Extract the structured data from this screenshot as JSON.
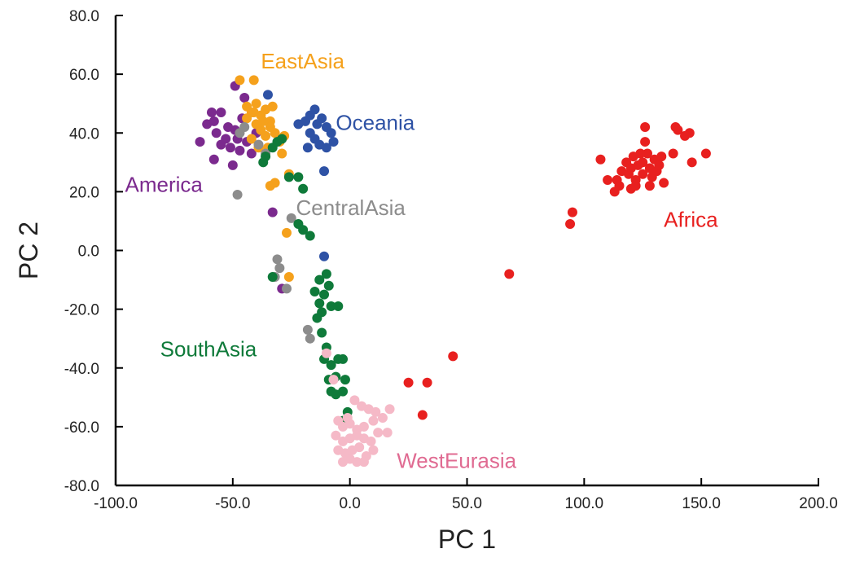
{
  "chart_data": {
    "type": "scatter",
    "title": "",
    "xlabel": "PC 1",
    "ylabel": "PC 2",
    "xlim": [
      -100,
      200
    ],
    "ylim": [
      -80,
      80
    ],
    "xticks": [
      -100,
      -50,
      0,
      50,
      100,
      150,
      200
    ],
    "xtick_labels": [
      "-100.0",
      "-50.0",
      "0.0",
      "50.0",
      "100.0",
      "150.0",
      "200.0"
    ],
    "yticks": [
      -80,
      -60,
      -40,
      -20,
      0,
      20,
      40,
      60,
      80
    ],
    "ytick_labels": [
      "-80.0",
      "-60.0",
      "-40.0",
      "-20.0",
      "0.0",
      "20.0",
      "40.0",
      "60.0",
      "80.0"
    ],
    "grid": false,
    "series": [
      {
        "name": "America",
        "color": "#7b2a8e",
        "points": [
          [
            -64,
            37
          ],
          [
            -61,
            43
          ],
          [
            -59,
            47
          ],
          [
            -58,
            44
          ],
          [
            -57,
            40
          ],
          [
            -55,
            47
          ],
          [
            -53,
            38
          ],
          [
            -52,
            42
          ],
          [
            -51,
            35
          ],
          [
            -50,
            29
          ],
          [
            -49,
            56
          ],
          [
            -49,
            41
          ],
          [
            -48,
            38
          ],
          [
            -47,
            34
          ],
          [
            -46,
            45
          ],
          [
            -44,
            37
          ],
          [
            -42,
            33
          ],
          [
            -40,
            40
          ],
          [
            -45,
            52
          ],
          [
            -58,
            31
          ],
          [
            -55,
            36
          ],
          [
            -33,
            13
          ],
          [
            -29,
            -13
          ]
        ]
      },
      {
        "name": "EastAsia",
        "color": "#f5a11c",
        "points": [
          [
            -47,
            58
          ],
          [
            -41,
            58
          ],
          [
            -44,
            49
          ],
          [
            -42,
            47
          ],
          [
            -40,
            50
          ],
          [
            -38,
            46
          ],
          [
            -36,
            48
          ],
          [
            -34,
            44
          ],
          [
            -33,
            49
          ],
          [
            -44,
            45
          ],
          [
            -40,
            43
          ],
          [
            -38,
            41
          ],
          [
            -36,
            39
          ],
          [
            -42,
            38
          ],
          [
            -39,
            35
          ],
          [
            -35,
            35
          ],
          [
            -32,
            40
          ],
          [
            -30,
            37
          ],
          [
            -28,
            39
          ],
          [
            -29,
            33
          ],
          [
            -34,
            42
          ],
          [
            -37,
            44
          ],
          [
            -41,
            47
          ],
          [
            -26,
            26
          ],
          [
            -34,
            22
          ],
          [
            -32,
            23
          ],
          [
            -27,
            6
          ],
          [
            -26,
            -9
          ]
        ]
      },
      {
        "name": "Oceania",
        "color": "#2e52a5",
        "points": [
          [
            -35,
            53
          ],
          [
            -22,
            43
          ],
          [
            -19,
            44
          ],
          [
            -17,
            46
          ],
          [
            -15,
            48
          ],
          [
            -14,
            43
          ],
          [
            -12,
            45
          ],
          [
            -10,
            42
          ],
          [
            -8,
            40
          ],
          [
            -17,
            40
          ],
          [
            -15,
            38
          ],
          [
            -13,
            36
          ],
          [
            -10,
            35
          ],
          [
            -7,
            37
          ],
          [
            -18,
            35
          ],
          [
            -11,
            27
          ],
          [
            -11,
            -2
          ]
        ]
      },
      {
        "name": "CentralAsia",
        "color": "#8c8c8c",
        "points": [
          [
            -48,
            19
          ],
          [
            -47,
            40
          ],
          [
            -45,
            42
          ],
          [
            -39,
            36
          ],
          [
            -36,
            33
          ],
          [
            -25,
            11
          ],
          [
            -31,
            -3
          ],
          [
            -32,
            -9
          ],
          [
            -30,
            -6
          ],
          [
            -27,
            -13
          ],
          [
            -18,
            -27
          ],
          [
            -17,
            -30
          ]
        ]
      },
      {
        "name": "SouthAsia",
        "color": "#0f7a3a",
        "points": [
          [
            -37,
            30
          ],
          [
            -36,
            32
          ],
          [
            -33,
            35
          ],
          [
            -31,
            37
          ],
          [
            -29,
            38
          ],
          [
            -26,
            25
          ],
          [
            -22,
            25
          ],
          [
            -20,
            21
          ],
          [
            -22,
            9
          ],
          [
            -20,
            7
          ],
          [
            -17,
            5
          ],
          [
            -13,
            -10
          ],
          [
            -11,
            -15
          ],
          [
            -9,
            -12
          ],
          [
            -15,
            -14
          ],
          [
            -13,
            -18
          ],
          [
            -14,
            -23
          ],
          [
            -12,
            -21
          ],
          [
            -8,
            -19
          ],
          [
            -5,
            -19
          ],
          [
            -12,
            -28
          ],
          [
            -10,
            -33
          ],
          [
            -11,
            -37
          ],
          [
            -8,
            -39
          ],
          [
            -5,
            -37
          ],
          [
            -3,
            -37
          ],
          [
            -9,
            -44
          ],
          [
            -6,
            -43
          ],
          [
            -2,
            -44
          ],
          [
            -8,
            -48
          ],
          [
            -6,
            -49
          ],
          [
            -3,
            -48
          ],
          [
            -1,
            -55
          ],
          [
            -3,
            -58
          ],
          [
            -33,
            -9
          ],
          [
            -10,
            -8
          ]
        ]
      },
      {
        "name": "WestEurasia",
        "color": "#f5b9c7",
        "points": [
          [
            -10,
            -35
          ],
          [
            -7,
            -44
          ],
          [
            2,
            -51
          ],
          [
            5,
            -53
          ],
          [
            8,
            -54
          ],
          [
            11,
            -55
          ],
          [
            -5,
            -58
          ],
          [
            -3,
            -60
          ],
          [
            0,
            -59
          ],
          [
            3,
            -61
          ],
          [
            6,
            -60
          ],
          [
            10,
            -58
          ],
          [
            14,
            -57
          ],
          [
            -6,
            -63
          ],
          [
            -3,
            -65
          ],
          [
            0,
            -64
          ],
          [
            3,
            -63
          ],
          [
            6,
            -64
          ],
          [
            9,
            -65
          ],
          [
            12,
            -62
          ],
          [
            16,
            -62
          ],
          [
            -5,
            -68
          ],
          [
            -2,
            -69
          ],
          [
            1,
            -68
          ],
          [
            4,
            -67
          ],
          [
            7,
            -70
          ],
          [
            10,
            -68
          ],
          [
            -3,
            -72
          ],
          [
            0,
            -71
          ],
          [
            3,
            -72
          ],
          [
            6,
            -72
          ],
          [
            17,
            -54
          ],
          [
            -1,
            -57
          ]
        ]
      },
      {
        "name": "Africa",
        "color": "#e8201f",
        "points": [
          [
            68,
            -8
          ],
          [
            94,
            9
          ],
          [
            95,
            13
          ],
          [
            107,
            31
          ],
          [
            110,
            24
          ],
          [
            113,
            20
          ],
          [
            114,
            24
          ],
          [
            115,
            22
          ],
          [
            116,
            27
          ],
          [
            118,
            30
          ],
          [
            119,
            26
          ],
          [
            120,
            28
          ],
          [
            121,
            32
          ],
          [
            122,
            24
          ],
          [
            123,
            29
          ],
          [
            124,
            33
          ],
          [
            125,
            26
          ],
          [
            125,
            30
          ],
          [
            126,
            37
          ],
          [
            126,
            42
          ],
          [
            127,
            33
          ],
          [
            128,
            28
          ],
          [
            129,
            25
          ],
          [
            130,
            31
          ],
          [
            131,
            27
          ],
          [
            132,
            29
          ],
          [
            120,
            21
          ],
          [
            122,
            22
          ],
          [
            128,
            22
          ],
          [
            133,
            32
          ],
          [
            134,
            23
          ],
          [
            138,
            33
          ],
          [
            139,
            42
          ],
          [
            140,
            41
          ],
          [
            143,
            39
          ],
          [
            145,
            40
          ],
          [
            146,
            30
          ],
          [
            152,
            33
          ],
          [
            44,
            -36
          ],
          [
            33,
            -45
          ],
          [
            25,
            -45
          ],
          [
            31,
            -56
          ]
        ]
      }
    ],
    "annotations": [
      {
        "text": "EastAsia",
        "color": "#f5a11c",
        "x": -38,
        "y": 62
      },
      {
        "text": "Oceania",
        "color": "#2e52a5",
        "x": -6,
        "y": 41
      },
      {
        "text": "America",
        "color": "#7b2a8e",
        "x": -96,
        "y": 20
      },
      {
        "text": "CentralAsia",
        "color": "#8c8c8c",
        "x": -23,
        "y": 12
      },
      {
        "text": "Africa",
        "color": "#e8201f",
        "x": 134,
        "y": 8
      },
      {
        "text": "SouthAsia",
        "color": "#0f7a3a",
        "x": -81,
        "y": -36
      },
      {
        "text": "WestEurasia",
        "color": "#e06b92",
        "x": 20,
        "y": -74
      }
    ]
  }
}
